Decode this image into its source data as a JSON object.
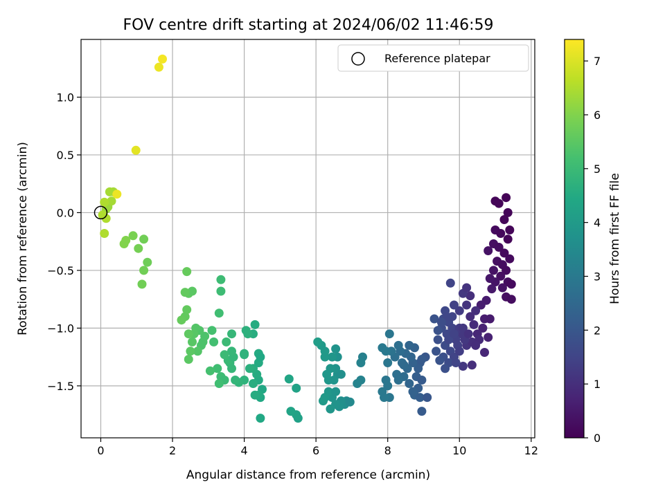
{
  "chart_data": {
    "type": "scatter",
    "title": "FOV centre drift starting at 2024/06/02 11:46:59",
    "xlabel": "Angular distance from reference (arcmin)",
    "ylabel": "Rotation from reference (arcmin)",
    "xlim": [
      -0.55,
      12.1
    ],
    "ylim": [
      -1.95,
      1.5
    ],
    "xticks": [
      0,
      2,
      4,
      6,
      8,
      10,
      12
    ],
    "yticks": [
      -1.5,
      -1.0,
      -0.5,
      0.0,
      0.5,
      1.0
    ],
    "xtick_labels": [
      "0",
      "2",
      "4",
      "6",
      "8",
      "10",
      "12"
    ],
    "ytick_labels": [
      "−1.5",
      "−1.0",
      "−0.5",
      "0.0",
      "0.5",
      "1.0"
    ],
    "grid": true,
    "colormap": "viridis",
    "colorbar": {
      "label": "Hours from first FF file",
      "range": [
        0,
        7.4
      ],
      "ticks": [
        0,
        1,
        2,
        3,
        4,
        5,
        6,
        7
      ],
      "tick_labels": [
        "0",
        "1",
        "2",
        "3",
        "4",
        "5",
        "6",
        "7"
      ]
    },
    "legend": {
      "position": "top-right",
      "entries": [
        {
          "label": "Reference platepar",
          "marker": "open-circle"
        }
      ]
    },
    "reference_point": {
      "x": 0,
      "y": 0
    },
    "points": [
      [
        11.0,
        0.1,
        0.1
      ],
      [
        11.1,
        0.08,
        0.1
      ],
      [
        11.3,
        0.13,
        0.05
      ],
      [
        11.25,
        -0.06,
        0.1
      ],
      [
        11.35,
        0.0,
        0.08
      ],
      [
        11.4,
        -0.15,
        0.1
      ],
      [
        11.0,
        -0.15,
        0.2
      ],
      [
        11.15,
        -0.18,
        0.15
      ],
      [
        11.35,
        -0.23,
        0.1
      ],
      [
        10.95,
        -0.27,
        0.3
      ],
      [
        11.1,
        -0.3,
        0.25
      ],
      [
        11.25,
        -0.35,
        0.2
      ],
      [
        11.4,
        -0.4,
        0.2
      ],
      [
        10.8,
        -0.33,
        0.35
      ],
      [
        11.05,
        -0.42,
        0.3
      ],
      [
        11.2,
        -0.45,
        0.25
      ],
      [
        11.3,
        -0.5,
        0.22
      ],
      [
        10.95,
        -0.5,
        0.35
      ],
      [
        11.15,
        -0.55,
        0.3
      ],
      [
        11.0,
        -0.6,
        0.4
      ],
      [
        11.35,
        -0.6,
        0.25
      ],
      [
        11.45,
        -0.62,
        0.2
      ],
      [
        10.85,
        -0.57,
        0.45
      ],
      [
        11.2,
        -0.65,
        0.35
      ],
      [
        10.9,
        -0.66,
        0.5
      ],
      [
        11.3,
        -0.73,
        0.3
      ],
      [
        11.45,
        -0.75,
        0.25
      ],
      [
        10.75,
        -0.76,
        0.55
      ],
      [
        10.6,
        -0.8,
        0.6
      ],
      [
        10.7,
        -0.92,
        0.6
      ],
      [
        10.85,
        -0.92,
        0.55
      ],
      [
        10.65,
        -1.0,
        0.7
      ],
      [
        10.8,
        -1.08,
        0.7
      ],
      [
        10.5,
        -1.05,
        0.8
      ],
      [
        10.4,
        -0.97,
        0.9
      ],
      [
        10.3,
        -0.9,
        0.95
      ],
      [
        10.45,
        -0.85,
        1.0
      ],
      [
        10.2,
        -0.8,
        1.1
      ],
      [
        10.3,
        -0.72,
        1.0
      ],
      [
        10.1,
        -0.7,
        1.2
      ],
      [
        10.2,
        -0.65,
        1.1
      ],
      [
        10.0,
        -0.85,
        1.3
      ],
      [
        9.85,
        -0.8,
        1.4
      ],
      [
        9.75,
        -0.61,
        1.5
      ],
      [
        10.05,
        -1.05,
        1.2
      ],
      [
        10.2,
        -1.15,
        1.1
      ],
      [
        10.35,
        -1.12,
        1.0
      ],
      [
        10.55,
        -1.1,
        0.9
      ],
      [
        10.7,
        -1.21,
        0.8
      ],
      [
        10.35,
        -1.32,
        1.0
      ],
      [
        10.1,
        -1.33,
        1.2
      ],
      [
        9.6,
        -0.85,
        1.6
      ],
      [
        9.55,
        -0.92,
        1.7
      ],
      [
        9.7,
        -0.95,
        1.6
      ],
      [
        9.8,
        -1.0,
        1.5
      ],
      [
        9.65,
        -1.05,
        1.6
      ],
      [
        9.9,
        -1.1,
        1.4
      ],
      [
        9.5,
        -1.0,
        1.7
      ],
      [
        9.4,
        -1.1,
        1.8
      ],
      [
        9.3,
        -0.92,
        1.9
      ],
      [
        9.6,
        -1.15,
        1.7
      ],
      [
        9.75,
        -1.2,
        1.6
      ],
      [
        9.85,
        -1.25,
        1.5
      ],
      [
        9.55,
        -1.25,
        1.8
      ],
      [
        9.35,
        -1.2,
        1.9
      ],
      [
        9.7,
        -1.3,
        1.7
      ],
      [
        9.6,
        -1.35,
        1.8
      ],
      [
        9.45,
        -1.28,
        1.9
      ],
      [
        9.9,
        -1.3,
        1.5
      ],
      [
        9.8,
        -0.9,
        1.5
      ],
      [
        10.0,
        -1.0,
        1.3
      ],
      [
        9.95,
        -1.15,
        1.4
      ],
      [
        10.1,
        -1.0,
        1.2
      ],
      [
        10.15,
        -1.1,
        1.2
      ],
      [
        10.0,
        -1.2,
        1.35
      ],
      [
        9.65,
        -0.9,
        1.55
      ],
      [
        9.5,
        -0.95,
        1.75
      ],
      [
        9.4,
        -1.02,
        1.85
      ],
      [
        9.7,
        -1.1,
        1.55
      ],
      [
        9.85,
        -1.05,
        1.45
      ],
      [
        10.25,
        -1.05,
        1.05
      ],
      [
        10.45,
        -1.15,
        0.95
      ],
      [
        9.05,
        -1.25,
        2.0
      ],
      [
        8.9,
        -1.3,
        2.1
      ],
      [
        8.85,
        -1.35,
        2.2
      ],
      [
        8.8,
        -1.42,
        2.2
      ],
      [
        8.7,
        -1.3,
        2.3
      ],
      [
        8.95,
        -1.45,
        2.1
      ],
      [
        8.85,
        -1.52,
        2.2
      ],
      [
        8.7,
        -1.55,
        2.3
      ],
      [
        8.6,
        -1.48,
        2.4
      ],
      [
        8.75,
        -1.58,
        2.3
      ],
      [
        8.9,
        -1.6,
        2.2
      ],
      [
        9.1,
        -1.6,
        2.0
      ],
      [
        8.95,
        -1.72,
        2.1
      ],
      [
        8.65,
        -1.25,
        2.4
      ],
      [
        8.5,
        -1.22,
        2.5
      ],
      [
        8.55,
        -1.35,
        2.5
      ],
      [
        8.4,
        -1.3,
        2.6
      ],
      [
        8.35,
        -1.2,
        2.6
      ],
      [
        8.2,
        -1.25,
        2.7
      ],
      [
        8.1,
        -1.2,
        2.8
      ],
      [
        8.25,
        -1.4,
        2.7
      ],
      [
        8.45,
        -1.42,
        2.6
      ],
      [
        8.3,
        -1.45,
        2.7
      ],
      [
        8.0,
        -1.3,
        2.9
      ],
      [
        7.95,
        -1.45,
        2.9
      ],
      [
        7.85,
        -1.55,
        3.0
      ],
      [
        8.0,
        -1.5,
        2.9
      ],
      [
        8.05,
        -1.6,
        2.9
      ],
      [
        7.9,
        -1.6,
        3.0
      ],
      [
        7.85,
        -1.17,
        3.0
      ],
      [
        7.95,
        -1.2,
        3.0
      ],
      [
        8.05,
        -1.05,
        2.9
      ],
      [
        8.3,
        -1.15,
        2.7
      ],
      [
        8.75,
        -1.17,
        2.3
      ],
      [
        8.95,
        -1.27,
        2.1
      ],
      [
        8.6,
        -1.15,
        2.4
      ],
      [
        8.45,
        -1.32,
        2.55
      ],
      [
        7.3,
        -1.25,
        3.2
      ],
      [
        7.25,
        -1.3,
        3.25
      ],
      [
        7.25,
        -1.45,
        3.25
      ],
      [
        7.15,
        -1.48,
        3.3
      ],
      [
        6.85,
        -1.63,
        3.5
      ],
      [
        6.8,
        -1.66,
        3.6
      ],
      [
        6.7,
        -1.63,
        3.65
      ],
      [
        6.65,
        -1.68,
        3.7
      ],
      [
        6.55,
        -1.66,
        3.75
      ],
      [
        6.45,
        -1.6,
        3.8
      ],
      [
        6.6,
        -1.4,
        3.7
      ],
      [
        6.55,
        -1.35,
        3.75
      ],
      [
        6.6,
        -1.25,
        3.7
      ],
      [
        6.55,
        -1.18,
        3.75
      ],
      [
        6.4,
        -1.35,
        3.85
      ],
      [
        6.35,
        -1.45,
        3.9
      ],
      [
        6.3,
        -1.4,
        3.9
      ],
      [
        6.5,
        -1.45,
        3.8
      ],
      [
        6.7,
        -1.4,
        3.65
      ],
      [
        6.45,
        -1.25,
        3.85
      ],
      [
        6.25,
        -1.25,
        3.95
      ],
      [
        6.15,
        -1.15,
        4.0
      ],
      [
        6.05,
        -1.12,
        4.1
      ],
      [
        6.25,
        -1.2,
        3.95
      ],
      [
        6.35,
        -1.55,
        3.9
      ],
      [
        6.25,
        -1.6,
        3.95
      ],
      [
        6.2,
        -1.63,
        4.0
      ],
      [
        6.4,
        -1.7,
        3.85
      ],
      [
        6.55,
        -1.55,
        3.75
      ],
      [
        6.95,
        -1.64,
        3.45
      ],
      [
        5.5,
        -1.78,
        4.2
      ],
      [
        5.45,
        -1.75,
        4.25
      ],
      [
        5.3,
        -1.72,
        4.3
      ],
      [
        5.45,
        -1.52,
        4.25
      ],
      [
        5.25,
        -1.44,
        4.35
      ],
      [
        4.5,
        -1.53,
        4.4
      ],
      [
        4.45,
        -1.6,
        4.45
      ],
      [
        4.4,
        -1.58,
        4.5
      ],
      [
        4.3,
        -1.58,
        4.55
      ],
      [
        4.45,
        -1.78,
        4.45
      ],
      [
        4.4,
        -1.45,
        4.5
      ],
      [
        4.35,
        -1.4,
        4.55
      ],
      [
        4.25,
        -1.35,
        4.6
      ],
      [
        4.4,
        -1.3,
        4.5
      ],
      [
        4.4,
        -1.22,
        4.5
      ],
      [
        4.45,
        -1.25,
        4.45
      ],
      [
        4.25,
        -1.05,
        4.6
      ],
      [
        4.3,
        -0.97,
        4.55
      ],
      [
        4.05,
        -1.02,
        4.7
      ],
      [
        4.1,
        -1.05,
        4.7
      ],
      [
        4.0,
        -1.22,
        4.75
      ],
      [
        4.15,
        -1.35,
        4.65
      ],
      [
        4.25,
        -1.48,
        4.6
      ],
      [
        4.0,
        -1.45,
        4.75
      ],
      [
        4.0,
        -1.23,
        4.75
      ],
      [
        3.85,
        -1.47,
        4.8
      ],
      [
        3.75,
        -1.45,
        4.85
      ],
      [
        3.65,
        -1.35,
        4.9
      ],
      [
        3.6,
        -1.3,
        4.9
      ],
      [
        3.55,
        -1.28,
        4.95
      ],
      [
        3.7,
        -1.25,
        4.85
      ],
      [
        3.65,
        -1.2,
        4.9
      ],
      [
        3.45,
        -1.23,
        5.0
      ],
      [
        3.5,
        -1.12,
        5.0
      ],
      [
        3.65,
        -1.05,
        4.9
      ],
      [
        3.3,
        -0.87,
        5.1
      ],
      [
        3.35,
        -0.68,
        5.05
      ],
      [
        3.35,
        -0.58,
        5.05
      ],
      [
        3.25,
        -1.35,
        5.1
      ],
      [
        3.35,
        -1.42,
        5.05
      ],
      [
        3.45,
        -1.45,
        5.0
      ],
      [
        3.3,
        -1.48,
        5.1
      ],
      [
        3.05,
        -1.37,
        5.2
      ],
      [
        2.9,
        -1.07,
        5.3
      ],
      [
        2.85,
        -1.12,
        5.3
      ],
      [
        2.75,
        -1.02,
        5.35
      ],
      [
        2.65,
        -1.0,
        5.4
      ],
      [
        2.6,
        -1.05,
        5.45
      ],
      [
        2.55,
        -1.12,
        5.45
      ],
      [
        2.8,
        -1.15,
        5.3
      ],
      [
        2.7,
        -1.2,
        5.4
      ],
      [
        2.5,
        -1.2,
        5.5
      ],
      [
        2.45,
        -1.27,
        5.5
      ],
      [
        2.45,
        -1.05,
        5.55
      ],
      [
        2.35,
        -0.9,
        5.6
      ],
      [
        2.25,
        -0.93,
        5.65
      ],
      [
        2.4,
        -0.84,
        5.6
      ],
      [
        2.45,
        -0.7,
        5.55
      ],
      [
        2.55,
        -0.68,
        5.5
      ],
      [
        2.35,
        -0.69,
        5.6
      ],
      [
        2.4,
        -0.51,
        5.65
      ],
      [
        3.1,
        -1.02,
        5.2
      ],
      [
        3.15,
        -1.12,
        5.15
      ],
      [
        1.3,
        -0.43,
        5.75
      ],
      [
        1.2,
        -0.5,
        5.8
      ],
      [
        1.15,
        -0.62,
        5.8
      ],
      [
        1.2,
        -0.23,
        5.8
      ],
      [
        1.05,
        -0.31,
        5.85
      ],
      [
        0.9,
        -0.2,
        5.9
      ],
      [
        0.7,
        -0.24,
        6.0
      ],
      [
        0.65,
        -0.27,
        6.0
      ],
      [
        0.15,
        0.03,
        6.3
      ],
      [
        0.2,
        0.05,
        6.3
      ],
      [
        0.3,
        0.1,
        6.4
      ],
      [
        0.25,
        0.18,
        6.4
      ],
      [
        0.35,
        0.18,
        6.4
      ],
      [
        0.1,
        0.09,
        6.5
      ],
      [
        0.05,
        -0.02,
        6.5
      ],
      [
        0.15,
        -0.05,
        6.5
      ],
      [
        0.1,
        -0.18,
        6.5
      ],
      [
        0.45,
        0.16,
        7.2
      ],
      [
        0.98,
        0.54,
        7.1
      ],
      [
        1.62,
        1.26,
        7.2
      ],
      [
        1.72,
        1.33,
        7.3
      ]
    ]
  }
}
